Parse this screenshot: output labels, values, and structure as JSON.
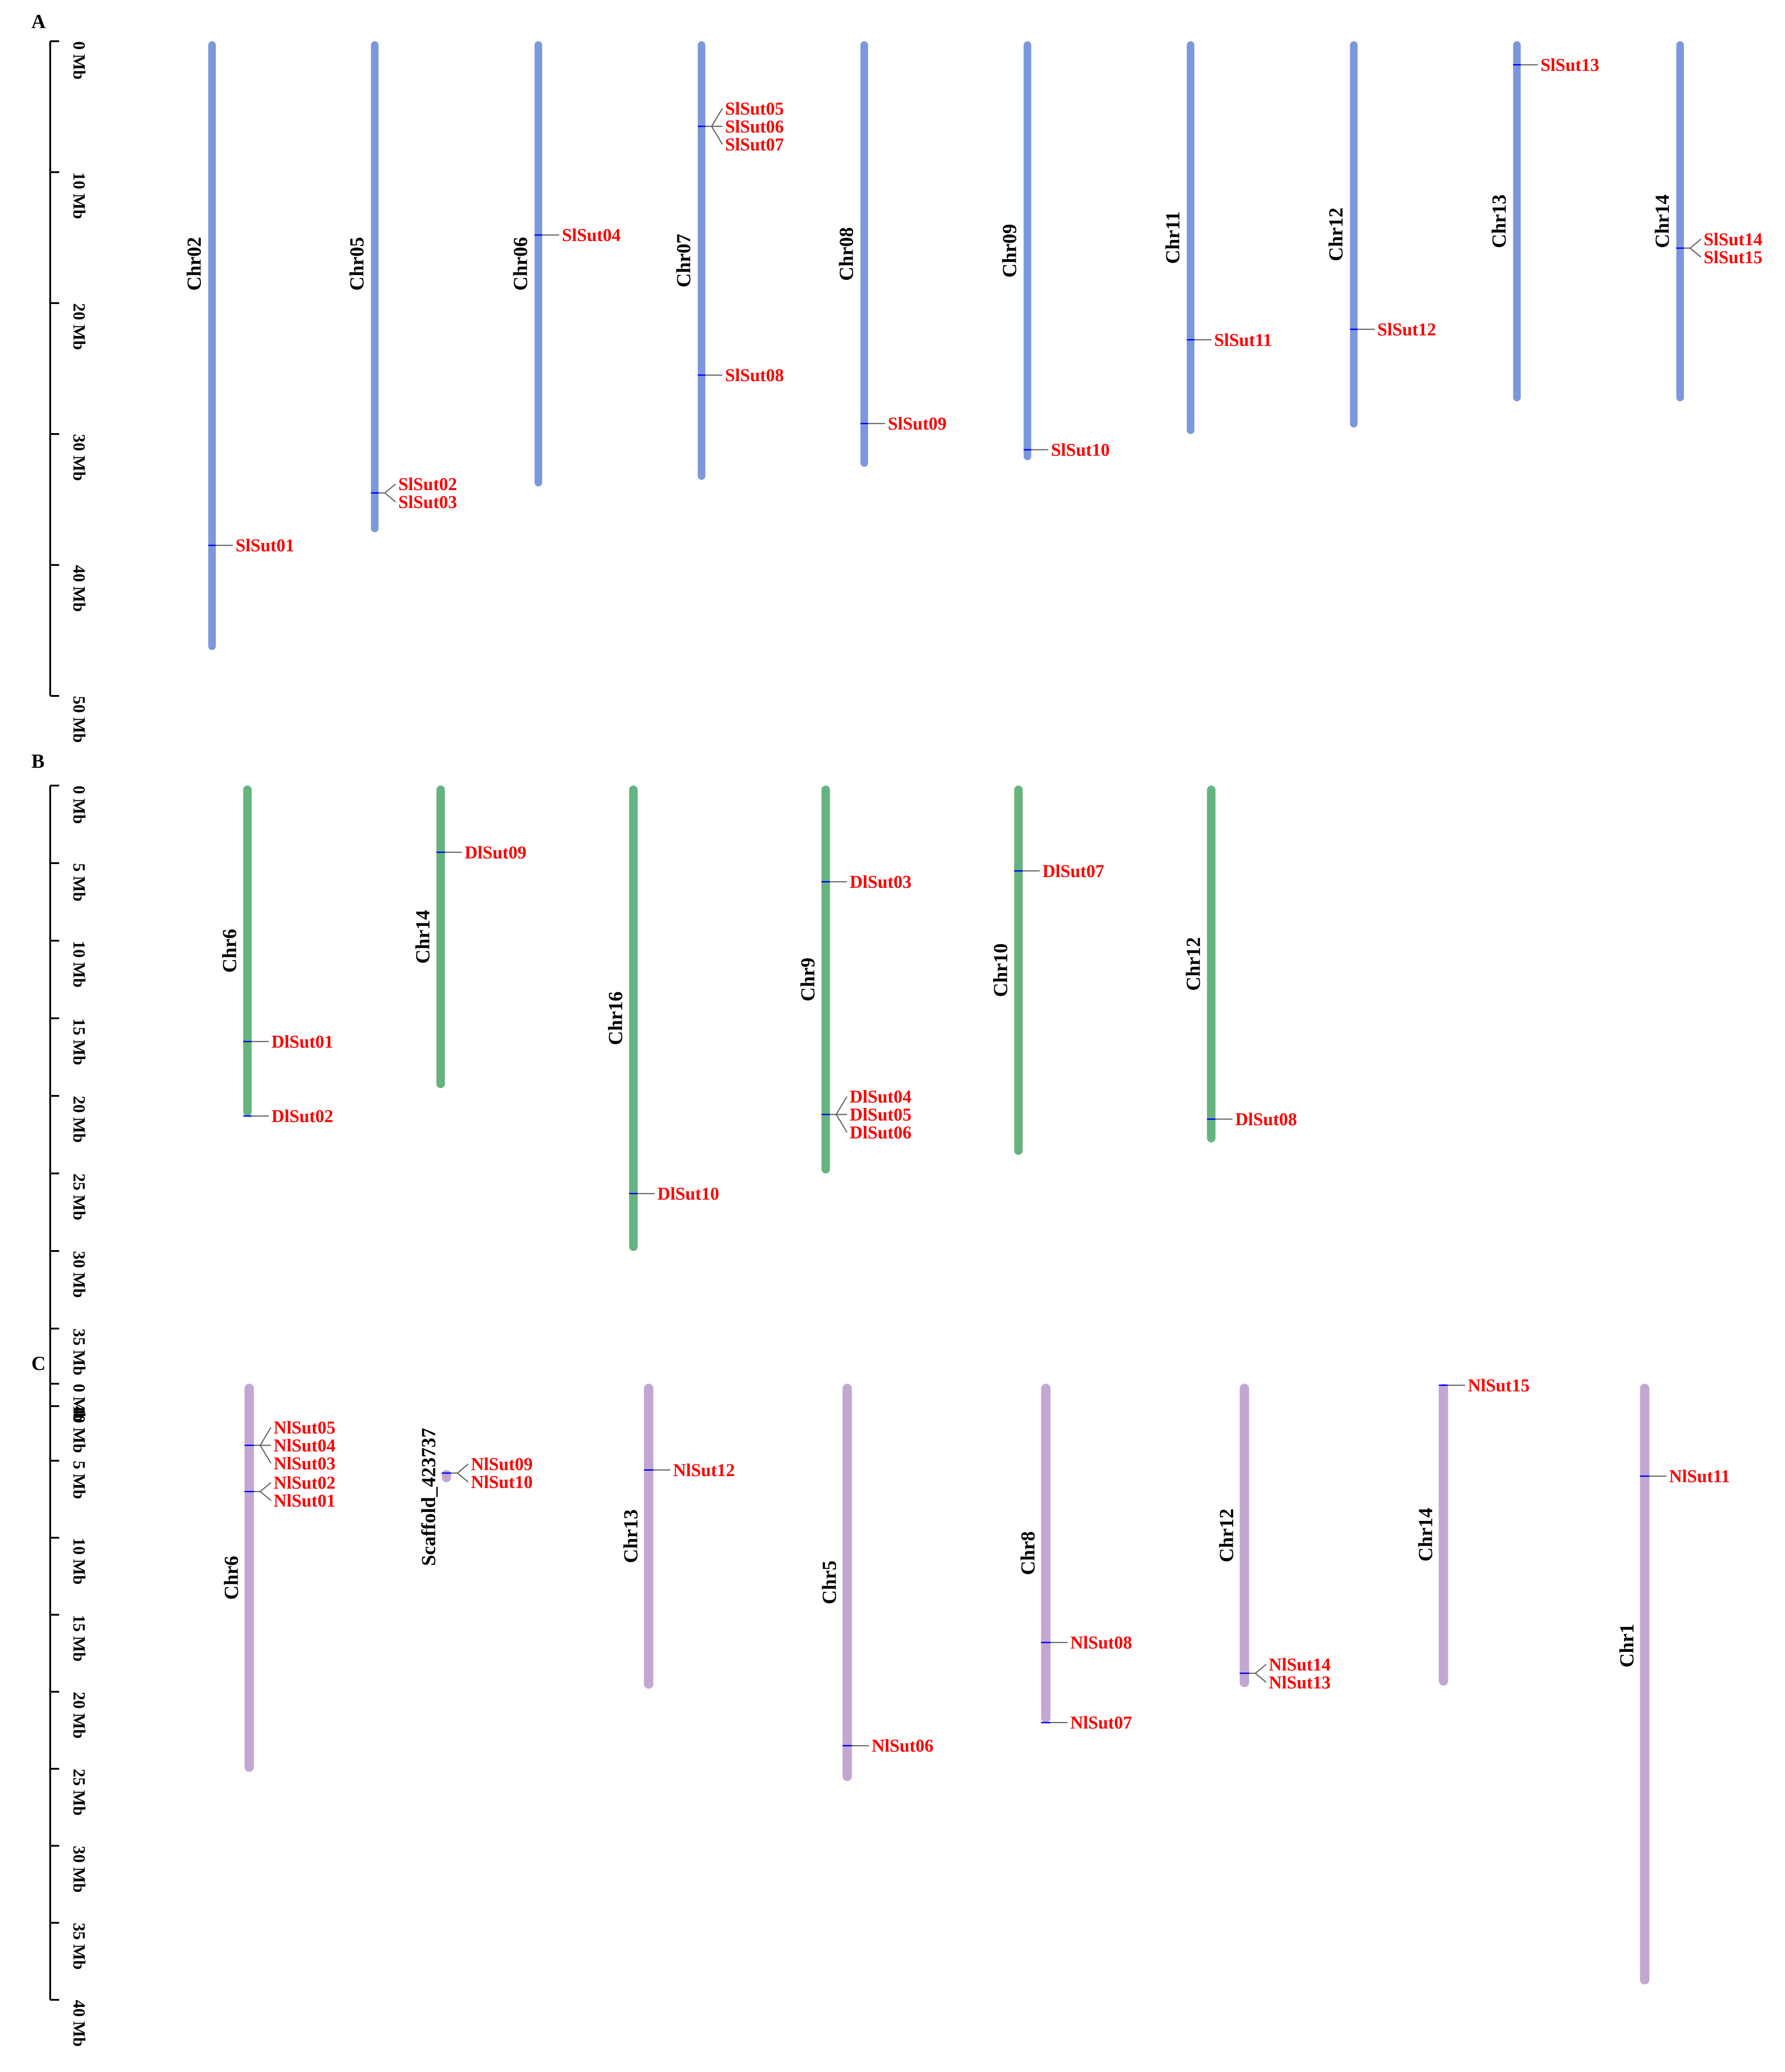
{
  "colors": {
    "panel_a": "#7b98dc",
    "panel_b": "#66b37d",
    "panel_c": "#c3a7d3",
    "gene_text": "#ff0000",
    "leader_line": "#606060",
    "locus_tick": "#0000ff",
    "scale": "#000000"
  },
  "panels": [
    {
      "letter": "A",
      "color_key": "panel_a",
      "scale": {
        "max_mb": 50,
        "ticks": [
          0,
          10,
          20,
          30,
          40,
          50
        ],
        "labels": [
          "0 Mb",
          "10 Mb",
          "20 Mb",
          "30 Mb",
          "40 Mb",
          "50 Mb"
        ]
      },
      "chromosomes": [
        {
          "name": "Chr02",
          "length_mb": 46.5,
          "genes": [
            {
              "id": "SlSut01",
              "pos_mb": 38.5
            }
          ]
        },
        {
          "name": "Chr05",
          "length_mb": 37.5,
          "genes": [
            {
              "id": "SlSut02",
              "pos_mb": 34.5
            },
            {
              "id": "SlSut03",
              "pos_mb": 34.5
            }
          ]
        },
        {
          "name": "Chr06",
          "length_mb": 34.0,
          "genes": [
            {
              "id": "SlSut04",
              "pos_mb": 14.8
            }
          ]
        },
        {
          "name": "Chr07",
          "length_mb": 33.5,
          "genes": [
            {
              "id": "SlSut05",
              "pos_mb": 6.5
            },
            {
              "id": "SlSut06",
              "pos_mb": 6.5
            },
            {
              "id": "SlSut07",
              "pos_mb": 6.5
            },
            {
              "id": "SlSut08",
              "pos_mb": 25.5
            }
          ]
        },
        {
          "name": "Chr08",
          "length_mb": 32.5,
          "genes": [
            {
              "id": "SlSut09",
              "pos_mb": 29.2
            }
          ]
        },
        {
          "name": "Chr09",
          "length_mb": 32.0,
          "genes": [
            {
              "id": "SlSut10",
              "pos_mb": 31.2
            }
          ]
        },
        {
          "name": "Chr11",
          "length_mb": 30.0,
          "genes": [
            {
              "id": "SlSut11",
              "pos_mb": 22.8
            }
          ]
        },
        {
          "name": "Chr12",
          "length_mb": 29.5,
          "genes": [
            {
              "id": "SlSut12",
              "pos_mb": 22.0
            }
          ]
        },
        {
          "name": "Chr13",
          "length_mb": 27.5,
          "genes": [
            {
              "id": "SlSut13",
              "pos_mb": 1.8
            }
          ]
        },
        {
          "name": "Chr14",
          "length_mb": 27.5,
          "genes": [
            {
              "id": "SlSut14",
              "pos_mb": 15.8
            },
            {
              "id": "SlSut15",
              "pos_mb": 15.8
            }
          ]
        }
      ]
    },
    {
      "letter": "B",
      "color_key": "panel_b",
      "scale": {
        "max_mb": 40,
        "ticks": [
          0,
          5,
          10,
          15,
          20,
          25,
          30,
          35,
          40
        ],
        "labels": [
          "0 Mb",
          "5 Mb",
          "10 Mb",
          "15 Mb",
          "20 Mb",
          "25 Mb",
          "30 Mb",
          "35 Mb",
          "40 Mb"
        ]
      },
      "chromosomes": [
        {
          "name": "Chr6",
          "length_mb": 21.3,
          "genes": [
            {
              "id": "DlSut01",
              "pos_mb": 16.5
            },
            {
              "id": "DlSut02",
              "pos_mb": 21.3
            }
          ]
        },
        {
          "name": "Chr14",
          "length_mb": 19.5,
          "genes": [
            {
              "id": "DlSut09",
              "pos_mb": 4.3
            }
          ]
        },
        {
          "name": "Chr16",
          "length_mb": 30.0,
          "genes": [
            {
              "id": "DlSut10",
              "pos_mb": 26.3
            }
          ]
        },
        {
          "name": "Chr9",
          "length_mb": 25.0,
          "genes": [
            {
              "id": "DlSut03",
              "pos_mb": 6.2
            },
            {
              "id": "DlSut04",
              "pos_mb": 21.2
            },
            {
              "id": "DlSut05",
              "pos_mb": 21.2
            },
            {
              "id": "DlSut06",
              "pos_mb": 21.2
            }
          ]
        },
        {
          "name": "Chr10",
          "length_mb": 23.8,
          "genes": [
            {
              "id": "DlSut07",
              "pos_mb": 5.5
            }
          ]
        },
        {
          "name": "Chr12",
          "length_mb": 23.0,
          "genes": [
            {
              "id": "DlSut08",
              "pos_mb": 21.5
            }
          ]
        }
      ]
    },
    {
      "letter": "C",
      "color_key": "panel_c",
      "scale": {
        "max_mb": 40,
        "ticks": [
          0,
          5,
          10,
          15,
          20,
          25,
          30,
          35,
          40
        ],
        "labels": [
          "0 Mb",
          "5 Mb",
          "10 Mb",
          "15 Mb",
          "20 Mb",
          "25 Mb",
          "30 Mb",
          "35 Mb",
          "40 Mb"
        ]
      },
      "chromosomes": [
        {
          "name": "Chr6",
          "length_mb": 25.2,
          "genes": [
            {
              "id": "NlSut05",
              "pos_mb": 4.0
            },
            {
              "id": "NlSut04",
              "pos_mb": 4.0
            },
            {
              "id": "NlSut03",
              "pos_mb": 4.0
            },
            {
              "id": "NlSut02",
              "pos_mb": 7.0
            },
            {
              "id": "NlSut01",
              "pos_mb": 7.0
            }
          ]
        },
        {
          "name": "Scaffold_423737",
          "length_mb": 0.6,
          "start_mb": 5.6,
          "genes": [
            {
              "id": "NlSut09",
              "pos_mb": 5.8
            },
            {
              "id": "NlSut10",
              "pos_mb": 5.8
            }
          ]
        },
        {
          "name": "Chr13",
          "length_mb": 19.8,
          "genes": [
            {
              "id": "NlSut12",
              "pos_mb": 5.6
            }
          ]
        },
        {
          "name": "Chr5",
          "length_mb": 25.8,
          "genes": [
            {
              "id": "NlSut06",
              "pos_mb": 23.5
            }
          ]
        },
        {
          "name": "Chr8",
          "length_mb": 22.0,
          "genes": [
            {
              "id": "NlSut08",
              "pos_mb": 16.8
            },
            {
              "id": "NlSut07",
              "pos_mb": 22.0
            }
          ]
        },
        {
          "name": "Chr12",
          "length_mb": 19.7,
          "genes": [
            {
              "id": "NlSut14",
              "pos_mb": 18.8
            },
            {
              "id": "NlSut13",
              "pos_mb": 18.8
            }
          ]
        },
        {
          "name": "Chr14",
          "length_mb": 19.6,
          "genes": [
            {
              "id": "NlSut15",
              "pos_mb": 0.1
            }
          ]
        },
        {
          "name": "Chr1",
          "length_mb": 39.0,
          "genes": [
            {
              "id": "NlSut11",
              "pos_mb": 6.0
            }
          ]
        }
      ]
    }
  ]
}
